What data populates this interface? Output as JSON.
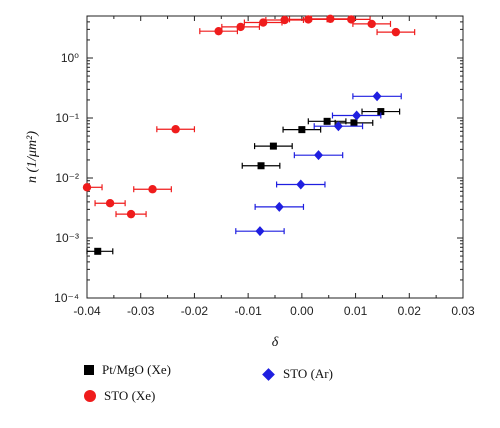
{
  "chart_data": {
    "type": "scatter",
    "xlabel": "δ",
    "ylabel": "n (1/μm²)",
    "xlim": [
      -0.04,
      0.03
    ],
    "ylim_log10": [
      -4,
      0.7
    ],
    "y_scale": "log",
    "grid": false,
    "x_ticks": [
      "-0.04",
      "-0.03",
      "-0.02",
      "-0.01",
      "0.00",
      "0.01",
      "0.02",
      "0.03"
    ],
    "y_ticks": [
      "10⁰",
      "10⁻¹",
      "10⁻²",
      "10⁻³",
      "10⁻⁴"
    ],
    "series": [
      {
        "name": "Pt/MgO (Xe)",
        "color": "#000000",
        "marker": "square",
        "points": [
          {
            "x": -0.038,
            "y": 0.0006,
            "xerr": 0.0028
          },
          {
            "x": -0.0076,
            "y": 0.016,
            "xerr": 0.0035
          },
          {
            "x": -0.0053,
            "y": 0.034,
            "xerr": 0.0035
          },
          {
            "x": 0.0,
            "y": 0.064,
            "xerr": 0.0035
          },
          {
            "x": 0.0047,
            "y": 0.088,
            "xerr": 0.0035
          },
          {
            "x": 0.0097,
            "y": 0.083,
            "xerr": 0.0035
          },
          {
            "x": 0.0147,
            "y": 0.128,
            "xerr": 0.0035
          }
        ]
      },
      {
        "name": "STO (Xe)",
        "color": "#ef1c1c",
        "marker": "circle",
        "points": [
          {
            "x": -0.04,
            "y": 0.007,
            "xerr": 0.0028
          },
          {
            "x": -0.0357,
            "y": 0.0038,
            "xerr": 0.0028
          },
          {
            "x": -0.0318,
            "y": 0.0025,
            "xerr": 0.0028
          },
          {
            "x": -0.0278,
            "y": 0.0065,
            "xerr": 0.0035
          },
          {
            "x": -0.0235,
            "y": 0.065,
            "xerr": 0.0035
          },
          {
            "x": -0.0155,
            "y": 2.8,
            "xerr": 0.0035
          },
          {
            "x": -0.0114,
            "y": 3.3,
            "xerr": 0.0035
          },
          {
            "x": -0.0072,
            "y": 3.9,
            "xerr": 0.0035
          },
          {
            "x": -0.0032,
            "y": 4.3,
            "xerr": 0.0035
          },
          {
            "x": 0.0012,
            "y": 4.4,
            "xerr": 0.0035
          },
          {
            "x": 0.0053,
            "y": 4.5,
            "xerr": 0.0035
          },
          {
            "x": 0.0092,
            "y": 4.4,
            "xerr": 0.0035
          },
          {
            "x": 0.013,
            "y": 3.7,
            "xerr": 0.0035
          },
          {
            "x": 0.0175,
            "y": 2.7,
            "xerr": 0.0035
          }
        ]
      },
      {
        "name": "STO (Ar)",
        "color": "#1f1fe0",
        "marker": "diamond",
        "points": [
          {
            "x": -0.0078,
            "y": 0.0013,
            "xerr": 0.0045
          },
          {
            "x": -0.0042,
            "y": 0.0033,
            "xerr": 0.0045
          },
          {
            "x": -0.0002,
            "y": 0.0078,
            "xerr": 0.0045
          },
          {
            "x": 0.0031,
            "y": 0.024,
            "xerr": 0.0045
          },
          {
            "x": 0.0068,
            "y": 0.073,
            "xerr": 0.0045
          },
          {
            "x": 0.0102,
            "y": 0.11,
            "xerr": 0.0045
          },
          {
            "x": 0.014,
            "y": 0.23,
            "xerr": 0.0045
          }
        ]
      }
    ]
  },
  "legend": {
    "items": [
      {
        "label": "Pt/MgO (Xe)",
        "marker": "square"
      },
      {
        "label": "STO (Xe)",
        "marker": "circle"
      },
      {
        "label": "STO (Ar)",
        "marker": "diamond"
      }
    ]
  }
}
